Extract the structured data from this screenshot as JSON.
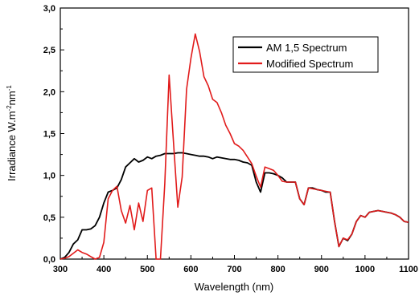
{
  "chart_data": {
    "type": "line",
    "title": "",
    "xlabel": "Wavelength (nm)",
    "ylabel": {
      "base": "Irradiance W.m",
      "sup1": "-2",
      "mid": "nm",
      "sup2": "-1"
    },
    "xlim": [
      300,
      1100
    ],
    "ylim": [
      0.0,
      3.0
    ],
    "x_ticks": [
      300,
      400,
      500,
      600,
      700,
      800,
      900,
      1000,
      1100
    ],
    "x_tick_labels": [
      "300",
      "400",
      "500",
      "600",
      "700",
      "800",
      "900",
      "1000",
      "1100"
    ],
    "y_ticks": [
      0.0,
      0.5,
      1.0,
      1.5,
      2.0,
      2.5,
      3.0
    ],
    "y_tick_labels": [
      "0,0",
      "0,5",
      "1,0",
      "1,5",
      "2,0",
      "2,5",
      "3,0"
    ],
    "grid": false,
    "legend_position": "top-right",
    "series": [
      {
        "name": "AM 1,5 Spectrum",
        "color": "#000000",
        "x": [
          300,
          310,
          320,
          330,
          340,
          350,
          360,
          370,
          380,
          390,
          400,
          410,
          420,
          430,
          440,
          450,
          460,
          470,
          480,
          490,
          500,
          510,
          520,
          530,
          540,
          550,
          560,
          570,
          580,
          590,
          600,
          610,
          620,
          630,
          640,
          650,
          660,
          670,
          680,
          690,
          700,
          710,
          720,
          730,
          740,
          750,
          760,
          770,
          780,
          790,
          800,
          810,
          820,
          830,
          840,
          850,
          860,
          870,
          880,
          890,
          900,
          910,
          920,
          930,
          940,
          950,
          960,
          970,
          980,
          990,
          1000,
          1010,
          1020,
          1030,
          1040,
          1050,
          1060,
          1070,
          1080,
          1090,
          1100
        ],
        "y": [
          0.0,
          0.02,
          0.08,
          0.18,
          0.23,
          0.35,
          0.35,
          0.36,
          0.4,
          0.5,
          0.67,
          0.8,
          0.82,
          0.85,
          0.95,
          1.1,
          1.15,
          1.2,
          1.16,
          1.18,
          1.22,
          1.2,
          1.23,
          1.24,
          1.26,
          1.26,
          1.26,
          1.27,
          1.27,
          1.26,
          1.25,
          1.24,
          1.23,
          1.23,
          1.22,
          1.2,
          1.22,
          1.21,
          1.2,
          1.19,
          1.19,
          1.18,
          1.16,
          1.15,
          1.12,
          0.92,
          0.8,
          1.03,
          1.03,
          1.02,
          1.0,
          0.97,
          0.92,
          0.92,
          0.92,
          0.72,
          0.65,
          0.85,
          0.85,
          0.83,
          0.82,
          0.8,
          0.8,
          0.45,
          0.15,
          0.25,
          0.22,
          0.3,
          0.45,
          0.52,
          0.5,
          0.56,
          0.57,
          0.58,
          0.57,
          0.56,
          0.55,
          0.53,
          0.5,
          0.45,
          0.44
        ]
      },
      {
        "name": "Modified Spectrum",
        "color": "#e11b1b",
        "x": [
          300,
          310,
          320,
          330,
          340,
          350,
          360,
          370,
          380,
          390,
          400,
          410,
          420,
          430,
          440,
          450,
          460,
          470,
          480,
          490,
          500,
          510,
          520,
          530,
          540,
          550,
          560,
          570,
          580,
          590,
          600,
          610,
          620,
          630,
          640,
          650,
          660,
          670,
          680,
          690,
          700,
          710,
          720,
          730,
          740,
          750,
          760,
          770,
          780,
          790,
          800,
          810,
          820,
          830,
          840,
          850,
          860,
          870,
          880,
          890,
          900,
          910,
          920,
          930,
          940,
          950,
          960,
          970,
          980,
          990,
          1000,
          1010,
          1020,
          1030,
          1040,
          1050,
          1060,
          1070,
          1080,
          1090,
          1100
        ],
        "y": [
          0.0,
          0.01,
          0.03,
          0.07,
          0.11,
          0.08,
          0.06,
          0.03,
          0.0,
          0.02,
          0.2,
          0.72,
          0.82,
          0.87,
          0.58,
          0.43,
          0.64,
          0.35,
          0.67,
          0.45,
          0.82,
          0.85,
          0.0,
          0.0,
          0.9,
          2.2,
          1.4,
          0.62,
          0.98,
          2.03,
          2.4,
          2.69,
          2.48,
          2.18,
          2.07,
          1.91,
          1.87,
          1.75,
          1.6,
          1.5,
          1.38,
          1.35,
          1.3,
          1.22,
          1.14,
          0.99,
          0.86,
          1.1,
          1.08,
          1.06,
          1.0,
          0.93,
          0.92,
          0.92,
          0.92,
          0.72,
          0.65,
          0.85,
          0.84,
          0.83,
          0.82,
          0.81,
          0.8,
          0.45,
          0.15,
          0.25,
          0.23,
          0.3,
          0.45,
          0.52,
          0.5,
          0.56,
          0.57,
          0.58,
          0.57,
          0.56,
          0.55,
          0.53,
          0.5,
          0.45,
          0.44
        ]
      }
    ]
  }
}
